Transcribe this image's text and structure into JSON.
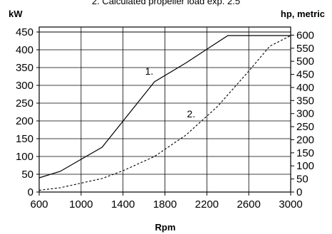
{
  "chart_data": {
    "type": "line",
    "caption": "2. Calculated propeller load exp. 2.5",
    "xlabel": "Rpm",
    "ylabel_left": "kW",
    "ylabel_right": "hp, metric",
    "xlim": [
      600,
      3000
    ],
    "ylim": [
      0,
      450
    ],
    "y2lim": [
      0,
      612
    ],
    "x_ticks": [
      600,
      1000,
      1400,
      1800,
      2200,
      2600,
      3000
    ],
    "y_ticks": [
      0,
      50,
      100,
      150,
      200,
      250,
      300,
      350,
      400,
      450
    ],
    "y2_ticks": [
      0,
      50,
      100,
      150,
      200,
      250,
      300,
      350,
      400,
      450,
      500,
      550,
      600
    ],
    "grid": true,
    "series": [
      {
        "name": "1.",
        "style": "solid",
        "x": [
          600,
          800,
          1200,
          1700,
          2000,
          2400,
          3000
        ],
        "y": [
          40,
          58,
          126,
          310,
          363,
          440,
          440
        ]
      },
      {
        "name": "2.",
        "style": "dashed",
        "x": [
          600,
          800,
          1000,
          1200,
          1400,
          1700,
          2000,
          2300,
          2600,
          2800,
          3000
        ],
        "y": [
          5,
          12,
          25,
          38,
          60,
          100,
          160,
          240,
          340,
          410,
          440
        ]
      }
    ]
  }
}
